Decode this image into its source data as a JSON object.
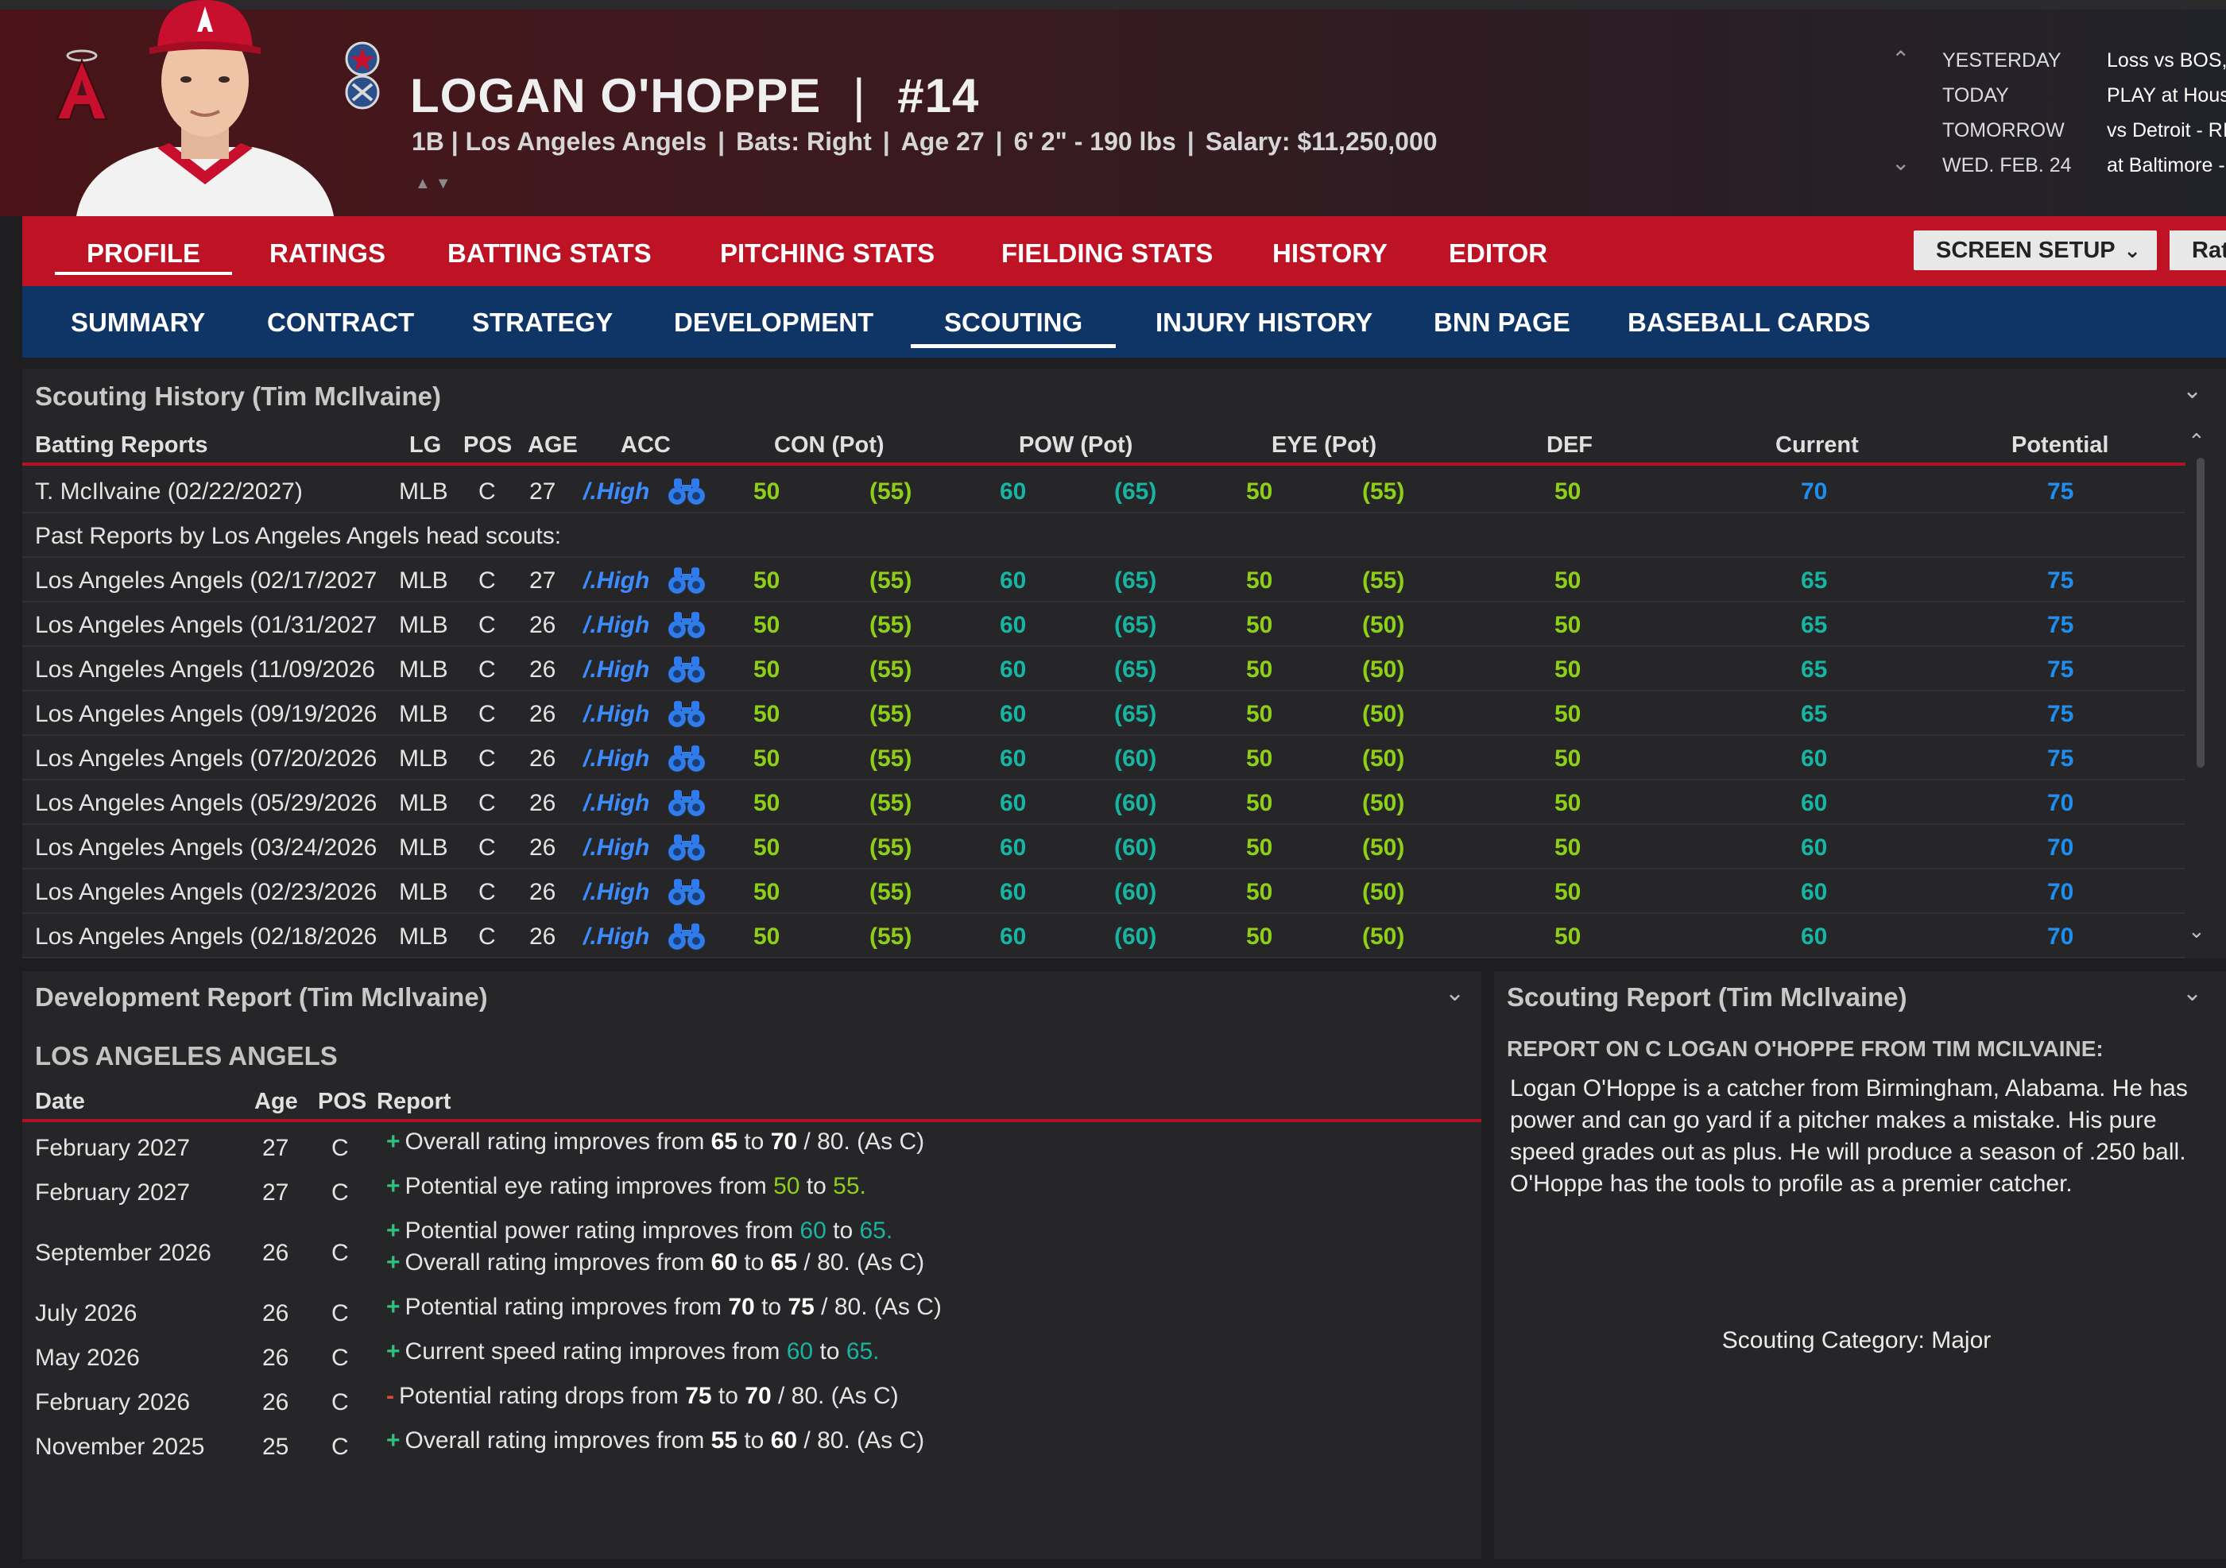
{
  "player": {
    "name": "LOGAN O'HOPPE",
    "number": "#14",
    "info": [
      "1B | Los Angeles Angels",
      "Bats: Right",
      "Age 27",
      "6' 2\"  - 190 lbs",
      "Salary: $11,250,000"
    ]
  },
  "schedule": [
    {
      "day": "YESTERDAY",
      "game": "Loss vs BOS,"
    },
    {
      "day": "TODAY",
      "game": "PLAY at Hous"
    },
    {
      "day": "TOMORROW",
      "game": "vs Detroit - RI"
    },
    {
      "day": "WED. FEB. 24",
      "game": "at Baltimore -"
    }
  ],
  "main_tabs": [
    "PROFILE",
    "RATINGS",
    "BATTING STATS",
    "PITCHING STATS",
    "FIELDING STATS",
    "HISTORY",
    "EDITOR"
  ],
  "screen_setup": "SCREEN SETUP",
  "rat_button": "Rat",
  "sub_tabs": [
    "SUMMARY",
    "CONTRACT",
    "STRATEGY",
    "DEVELOPMENT",
    "SCOUTING",
    "INJURY HISTORY",
    "BNN PAGE",
    "BASEBALL CARDS"
  ],
  "scouting_history": {
    "title": "Scouting History (Tim McIlvaine)",
    "headers": [
      "Batting Reports",
      "LG",
      "POS",
      "AGE",
      "ACC",
      "CON (Pot)",
      "POW (Pot)",
      "EYE (Pot)",
      "DEF",
      "Current",
      "Potential"
    ],
    "current_report": {
      "name": "T. McIlvaine (02/22/2027)",
      "lg": "MLB",
      "pos": "C",
      "age": "27",
      "acc": "/.High",
      "con": "50",
      "con_pot": "(55)",
      "pow": "60",
      "pow_pot": "(65)",
      "eye": "50",
      "eye_pot": "(55)",
      "def": "50",
      "current": "70",
      "potential": "75"
    },
    "past_label": "Past Reports by Los Angeles Angels head scouts:",
    "past_reports": [
      {
        "name": "Los Angeles Angels (02/17/2027",
        "lg": "MLB",
        "pos": "C",
        "age": "27",
        "acc": "/.High",
        "con": "50",
        "con_pot": "(55)",
        "pow": "60",
        "pow_pot": "(65)",
        "eye": "50",
        "eye_pot": "(55)",
        "def": "50",
        "current": "65",
        "potential": "75"
      },
      {
        "name": "Los Angeles Angels (01/31/2027",
        "lg": "MLB",
        "pos": "C",
        "age": "26",
        "acc": "/.High",
        "con": "50",
        "con_pot": "(55)",
        "pow": "60",
        "pow_pot": "(65)",
        "eye": "50",
        "eye_pot": "(50)",
        "def": "50",
        "current": "65",
        "potential": "75"
      },
      {
        "name": "Los Angeles Angels (11/09/2026",
        "lg": "MLB",
        "pos": "C",
        "age": "26",
        "acc": "/.High",
        "con": "50",
        "con_pot": "(55)",
        "pow": "60",
        "pow_pot": "(65)",
        "eye": "50",
        "eye_pot": "(50)",
        "def": "50",
        "current": "65",
        "potential": "75"
      },
      {
        "name": "Los Angeles Angels (09/19/2026",
        "lg": "MLB",
        "pos": "C",
        "age": "26",
        "acc": "/.High",
        "con": "50",
        "con_pot": "(55)",
        "pow": "60",
        "pow_pot": "(65)",
        "eye": "50",
        "eye_pot": "(50)",
        "def": "50",
        "current": "65",
        "potential": "75"
      },
      {
        "name": "Los Angeles Angels (07/20/2026",
        "lg": "MLB",
        "pos": "C",
        "age": "26",
        "acc": "/.High",
        "con": "50",
        "con_pot": "(55)",
        "pow": "60",
        "pow_pot": "(60)",
        "eye": "50",
        "eye_pot": "(50)",
        "def": "50",
        "current": "60",
        "potential": "75"
      },
      {
        "name": "Los Angeles Angels (05/29/2026",
        "lg": "MLB",
        "pos": "C",
        "age": "26",
        "acc": "/.High",
        "con": "50",
        "con_pot": "(55)",
        "pow": "60",
        "pow_pot": "(60)",
        "eye": "50",
        "eye_pot": "(50)",
        "def": "50",
        "current": "60",
        "potential": "70"
      },
      {
        "name": "Los Angeles Angels (03/24/2026",
        "lg": "MLB",
        "pos": "C",
        "age": "26",
        "acc": "/.High",
        "con": "50",
        "con_pot": "(55)",
        "pow": "60",
        "pow_pot": "(60)",
        "eye": "50",
        "eye_pot": "(50)",
        "def": "50",
        "current": "60",
        "potential": "70"
      },
      {
        "name": "Los Angeles Angels (02/23/2026",
        "lg": "MLB",
        "pos": "C",
        "age": "26",
        "acc": "/.High",
        "con": "50",
        "con_pot": "(55)",
        "pow": "60",
        "pow_pot": "(60)",
        "eye": "50",
        "eye_pot": "(50)",
        "def": "50",
        "current": "60",
        "potential": "70"
      },
      {
        "name": "Los Angeles Angels (02/18/2026",
        "lg": "MLB",
        "pos": "C",
        "age": "26",
        "acc": "/.High",
        "con": "50",
        "con_pot": "(55)",
        "pow": "60",
        "pow_pot": "(60)",
        "eye": "50",
        "eye_pot": "(50)",
        "def": "50",
        "current": "60",
        "potential": "70"
      }
    ]
  },
  "development_report": {
    "title": "Development Report (Tim McIlvaine)",
    "team": "LOS ANGELES ANGELS",
    "headers": [
      "Date",
      "Age",
      "POS",
      "Report"
    ],
    "rows": [
      {
        "date": "February 2027",
        "age": "27",
        "pos": "C",
        "lines": [
          {
            "sign": "+",
            "parts": [
              [
                "Overall rating improves from ",
                ""
              ],
              [
                "65",
                "b"
              ],
              [
                " to ",
                ""
              ],
              [
                "70",
                "b"
              ],
              [
                " / 80. (As C)",
                ""
              ]
            ]
          }
        ]
      },
      {
        "date": "February 2027",
        "age": "27",
        "pos": "C",
        "lines": [
          {
            "sign": "+",
            "parts": [
              [
                "Potential eye rating improves from ",
                ""
              ],
              [
                "50",
                "g"
              ],
              [
                " to ",
                ""
              ],
              [
                "55.",
                "g"
              ]
            ]
          }
        ]
      },
      {
        "date": "September 2026",
        "age": "26",
        "pos": "C",
        "lines": [
          {
            "sign": "+",
            "parts": [
              [
                "Potential power rating improves from ",
                ""
              ],
              [
                "60",
                "t"
              ],
              [
                " to ",
                ""
              ],
              [
                "65.",
                "t"
              ]
            ]
          },
          {
            "sign": "+",
            "parts": [
              [
                "Overall rating improves from ",
                ""
              ],
              [
                "60",
                "b"
              ],
              [
                " to ",
                ""
              ],
              [
                "65",
                "b"
              ],
              [
                " / 80. (As C)",
                ""
              ]
            ]
          }
        ]
      },
      {
        "date": "July 2026",
        "age": "26",
        "pos": "C",
        "lines": [
          {
            "sign": "+",
            "parts": [
              [
                "Potential rating improves from ",
                ""
              ],
              [
                "70",
                "b"
              ],
              [
                " to ",
                ""
              ],
              [
                "75",
                "b"
              ],
              [
                " / 80. (As C)",
                ""
              ]
            ]
          }
        ]
      },
      {
        "date": "May 2026",
        "age": "26",
        "pos": "C",
        "lines": [
          {
            "sign": "+",
            "parts": [
              [
                "Current speed rating improves from ",
                ""
              ],
              [
                "60",
                "t"
              ],
              [
                " to ",
                ""
              ],
              [
                "65.",
                "t"
              ]
            ]
          }
        ]
      },
      {
        "date": "February 2026",
        "age": "26",
        "pos": "C",
        "lines": [
          {
            "sign": "-",
            "parts": [
              [
                "Potential rating drops from ",
                ""
              ],
              [
                "75",
                "b"
              ],
              [
                " to ",
                ""
              ],
              [
                "70",
                "b"
              ],
              [
                " / 80. (As C)",
                ""
              ]
            ]
          }
        ]
      },
      {
        "date": "November 2025",
        "age": "25",
        "pos": "C",
        "lines": [
          {
            "sign": "+",
            "parts": [
              [
                "Overall rating improves from ",
                ""
              ],
              [
                "55",
                "b"
              ],
              [
                " to ",
                ""
              ],
              [
                "60",
                "b"
              ],
              [
                " / 80. (As C)",
                ""
              ]
            ]
          }
        ]
      }
    ]
  },
  "scouting_report": {
    "title": "Scouting Report (Tim McIlvaine)",
    "heading": "REPORT ON C LOGAN O'HOPPE FROM TIM MCILVAINE:",
    "text": "Logan O'Hoppe is a catcher from Birmingham, Alabama. He has power and can go yard if a pitcher makes a mistake. His pure speed grades out as plus. He will produce a season of .250 ball. O'Hoppe has the tools to profile as a premier catcher.",
    "category": "Scouting Category: Major"
  },
  "icons": {
    "team_logo": "angels-logo-icon",
    "accuracy": "binoculars-icon",
    "award": "all-star-award-icon"
  },
  "colors": {
    "red_nav": "#bd1324",
    "blue_nav": "#0f3566",
    "rating_green": "#8ed017",
    "rating_teal": "#17b4a2",
    "rating_blue": "#1e8ff0"
  }
}
